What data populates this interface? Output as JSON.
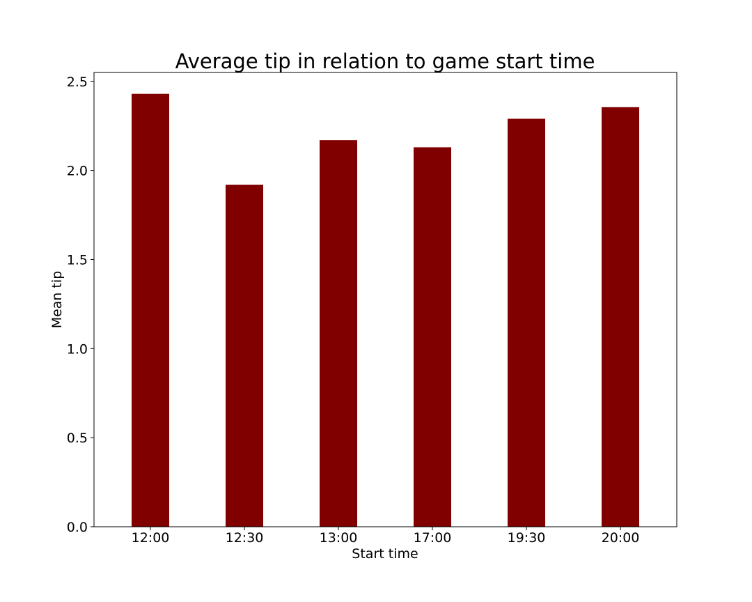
{
  "chart_data": {
    "type": "bar",
    "title": "Average tip in relation to game start time",
    "xlabel": "Start time",
    "ylabel": "Mean tip",
    "categories": [
      "12:00",
      "12:30",
      "13:00",
      "17:00",
      "19:30",
      "20:00"
    ],
    "values": [
      2.43,
      1.92,
      2.17,
      2.13,
      2.29,
      2.355
    ],
    "ylim": [
      0,
      2.55
    ],
    "yticks": [
      "0.0",
      "0.5",
      "1.0",
      "1.5",
      "2.0",
      "2.5"
    ],
    "bar_color": "#800000",
    "grid": false
  }
}
